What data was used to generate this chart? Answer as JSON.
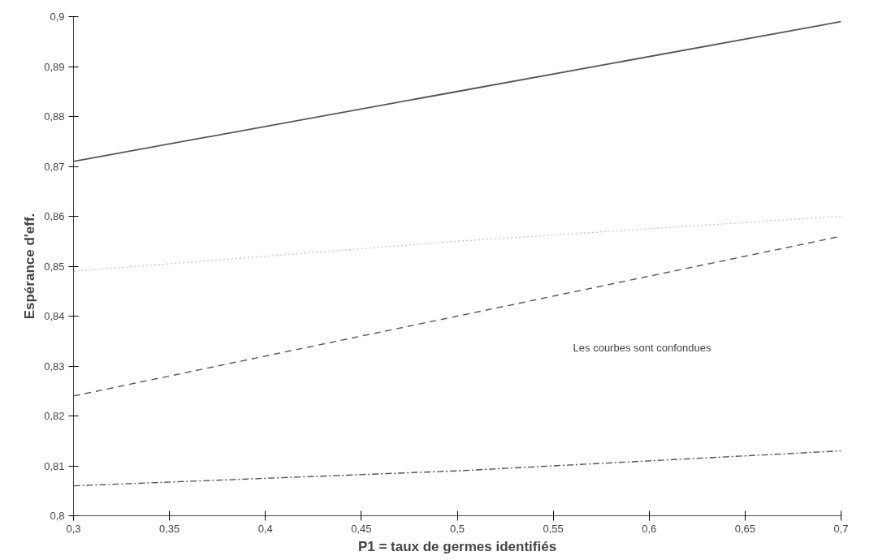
{
  "chart_data": {
    "type": "line",
    "xlabel": "P1 = taux de germes identifiés",
    "ylabel": "Espérance d'eff.",
    "x": [
      0.3,
      0.5,
      0.7
    ],
    "series": [
      {
        "color": "#555555",
        "line_style": "solid",
        "values": [
          0.871,
          0.885,
          0.899
        ]
      },
      {
        "color": "#c8c8c8",
        "line_style": "dotted",
        "values": [
          0.849,
          0.855,
          0.86
        ]
      },
      {
        "color": "#555555",
        "line_style": "dashed",
        "values": [
          0.824,
          0.84,
          0.856
        ]
      },
      {
        "color": "#555555",
        "line_style": "dashdot",
        "values": [
          0.806,
          0.809,
          0.813
        ]
      }
    ],
    "xlim": [
      0.3,
      0.7
    ],
    "ylim": [
      0.8,
      0.9
    ],
    "xticks": [
      {
        "value": 0.3,
        "label": "0,3"
      },
      {
        "value": 0.35,
        "label": "0,35"
      },
      {
        "value": 0.4,
        "label": "0,4"
      },
      {
        "value": 0.45,
        "label": "0,45"
      },
      {
        "value": 0.5,
        "label": "0,5"
      },
      {
        "value": 0.55,
        "label": "0,55"
      },
      {
        "value": 0.6,
        "label": "0,6"
      },
      {
        "value": 0.65,
        "label": "0,65"
      },
      {
        "value": 0.7,
        "label": "0,7"
      }
    ],
    "yticks": [
      {
        "value": 0.8,
        "label": "0,8"
      },
      {
        "value": 0.81,
        "label": "0,81"
      },
      {
        "value": 0.82,
        "label": "0,82"
      },
      {
        "value": 0.83,
        "label": "0,83"
      },
      {
        "value": 0.84,
        "label": "0,84"
      },
      {
        "value": 0.85,
        "label": "0,85"
      },
      {
        "value": 0.86,
        "label": "0,86"
      },
      {
        "value": 0.87,
        "label": "0,87"
      },
      {
        "value": 0.88,
        "label": "0,88"
      },
      {
        "value": 0.89,
        "label": "0,89"
      },
      {
        "value": 0.9,
        "label": "0,9"
      }
    ],
    "annotations": [
      "Les courbes sont confondues"
    ]
  }
}
